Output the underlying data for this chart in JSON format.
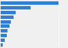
{
  "values": [
    100,
    52,
    26,
    22,
    18,
    15,
    12,
    10,
    7,
    3
  ],
  "bar_color": "#2f7ed8",
  "background_color": "#f0f0f0",
  "bar_height": 0.72,
  "xlim_max": 115
}
